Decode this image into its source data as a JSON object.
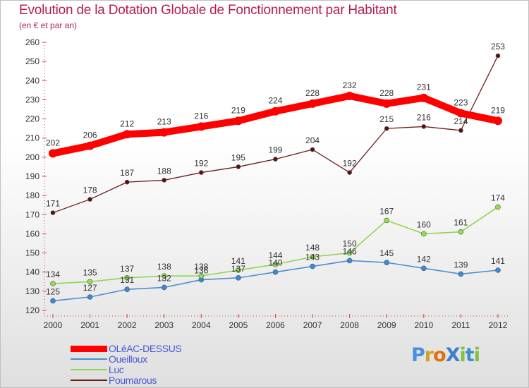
{
  "header": {
    "title": "Evolution de la Dotation Globale de Fonctionnement par Habitant",
    "subtitle": "(en € et par an)"
  },
  "brand": {
    "logo_text": "ProXiti",
    "letters": [
      "P",
      "r",
      "o",
      "X",
      "i",
      "t",
      "i"
    ]
  },
  "colors": {
    "title": "#b71c54",
    "legend_text": "#4a57d6",
    "series": [
      "#ff0000",
      "#4a8fd0",
      "#8fd651",
      "#6b1a1a"
    ],
    "markers": [
      "#ff0000",
      "#3a8ad8",
      "#8ee04f",
      "#5c1010"
    ],
    "logo": [
      "#4a8fe0",
      "#d2a020",
      "#e07010",
      "#3a7fd0",
      "#7cc240",
      "#3a8fd0",
      "#7cc240"
    ]
  },
  "chart_data": {
    "type": "line",
    "title": "Evolution de la Dotation Globale de Fonctionnement par Habitant",
    "subtitle": "(en € et par an)",
    "xlabel": "",
    "ylabel": "",
    "x": [
      "2000",
      "2001",
      "2002",
      "2003",
      "2004",
      "2005",
      "2006",
      "2007",
      "2008",
      "2009",
      "2010",
      "2011",
      "2012"
    ],
    "ylim": [
      120,
      260
    ],
    "yticks": [
      120,
      130,
      140,
      150,
      160,
      170,
      180,
      190,
      200,
      210,
      220,
      230,
      240,
      250,
      260
    ],
    "grid": false,
    "legend_position": "bottom-left",
    "series": [
      {
        "name": "OLéAC-DESSUS",
        "values": [
          202,
          206,
          212,
          213,
          216,
          219,
          224,
          228,
          232,
          228,
          231,
          223,
          219
        ]
      },
      {
        "name": "Oueilloux",
        "values": [
          125,
          127,
          131,
          132,
          136,
          137,
          140,
          143,
          146,
          145,
          142,
          139,
          141
        ]
      },
      {
        "name": "Luc",
        "values": [
          134,
          135,
          137,
          138,
          138,
          141,
          144,
          148,
          150,
          167,
          160,
          161,
          174
        ]
      },
      {
        "name": "Poumarous",
        "values": [
          171,
          178,
          187,
          188,
          192,
          195,
          199,
          204,
          192,
          215,
          216,
          214,
          253
        ]
      }
    ]
  }
}
